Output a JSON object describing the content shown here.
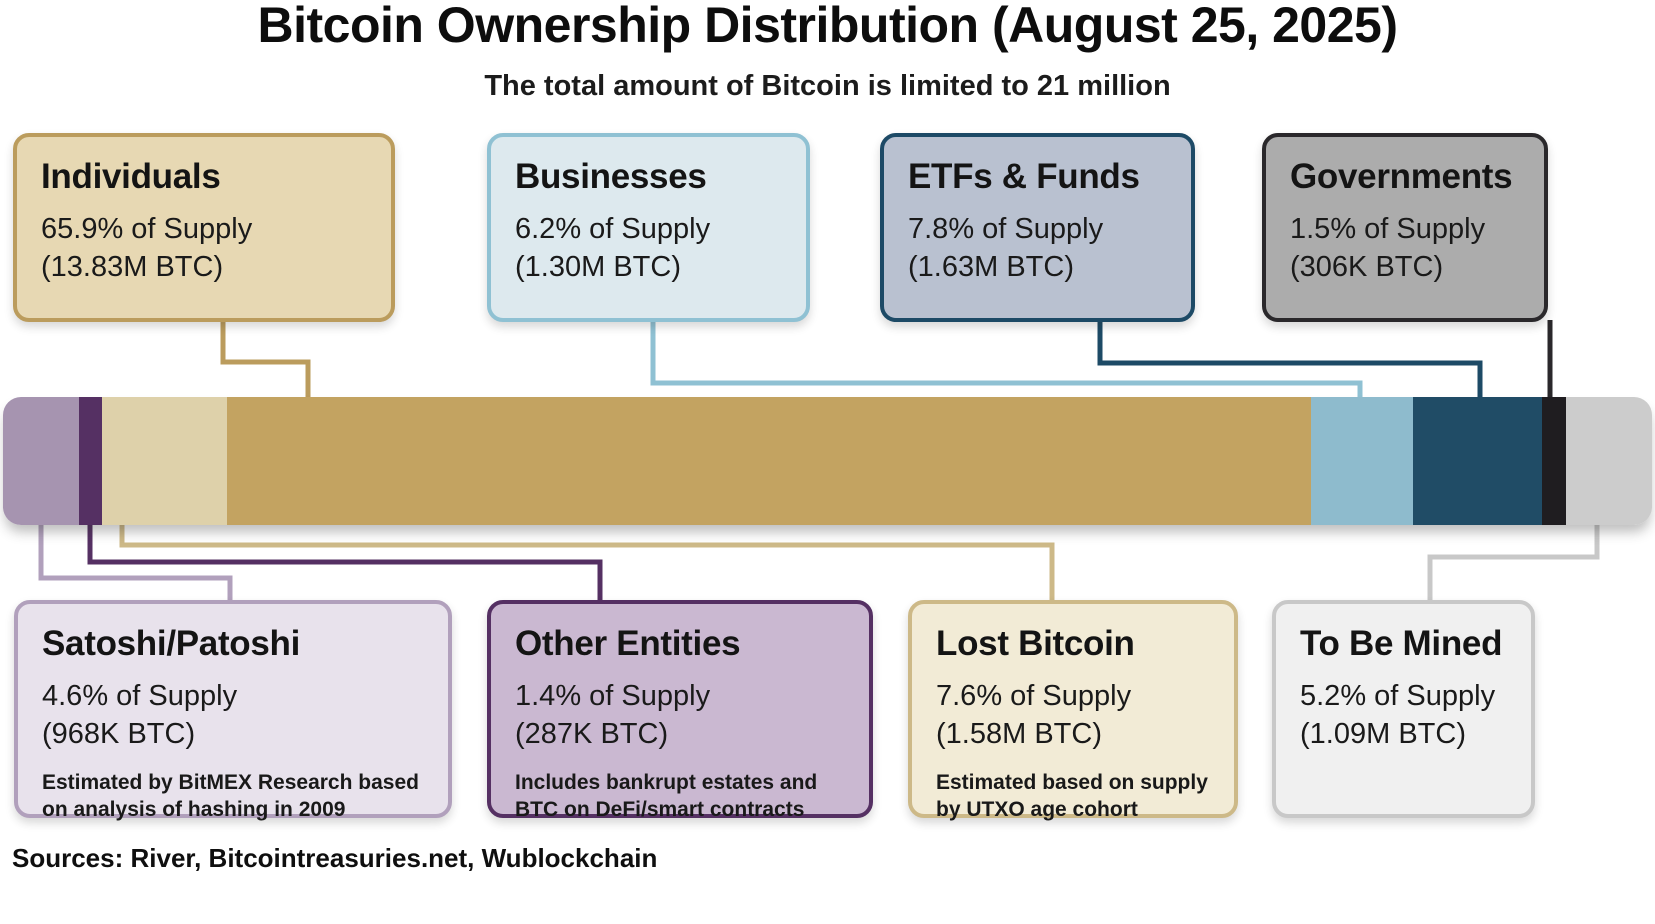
{
  "title": "Bitcoin Ownership Distribution (August 25, 2025)",
  "subtitle": "The total amount of Bitcoin is limited to 21 million",
  "sources": "Sources: River, Bitcointreasuries.net, Wublockchain",
  "cards_top": [
    {
      "title": "Individuals",
      "line1": "65.9% of Supply",
      "line2": "(13.83M BTC)",
      "bg": "#e7d8b3",
      "border": "#bb9c5d"
    },
    {
      "title": "Businesses",
      "line1": "6.2% of Supply",
      "line2": "(1.30M BTC)",
      "bg": "#dde9ee",
      "border": "#8fc1d3"
    },
    {
      "title": "ETFs & Funds",
      "line1": "7.8% of Supply",
      "line2": "(1.63M BTC)",
      "bg": "#b9c1d0",
      "border": "#1d4a66"
    },
    {
      "title": "Governments",
      "line1": "1.5% of Supply",
      "line2": "(306K BTC)",
      "bg": "#acacac",
      "border": "#2a282b"
    }
  ],
  "cards_bottom": [
    {
      "title": "Satoshi/Patoshi",
      "line1": "4.6% of Supply",
      "line2": "(968K BTC)",
      "note": "Estimated by BitMEX Research based on analysis of hashing in 2009",
      "bg": "#e8e2ec",
      "border": "#b1a0bc"
    },
    {
      "title": "Other Entities",
      "line1": "1.4% of Supply",
      "line2": "(287K BTC)",
      "note": "Includes bankrupt estates and BTC on DeFi/smart contracts",
      "bg": "#cab8d1",
      "border": "#553063"
    },
    {
      "title": "Lost Bitcoin",
      "line1": "7.6% of Supply",
      "line2": "(1.58M BTC)",
      "note": "Estimated based on supply by UTXO age cohort",
      "bg": "#f2ebd6",
      "border": "#cdb988"
    },
    {
      "title": "To Be Mined",
      "line1": "5.2% of Supply",
      "line2": "(1.09M BTC)",
      "note": "",
      "bg": "#f0f0f0",
      "border": "#c8c8c8"
    }
  ],
  "chart_data": {
    "type": "bar",
    "variant": "horizontal-stacked-100pct",
    "title": "Bitcoin Ownership Distribution (August 25, 2025)",
    "subtitle": "The total amount of Bitcoin is limited to 21 million",
    "total_supply": "21 million BTC",
    "unit": "% of Supply",
    "legend_position": "callout-boxes-above-and-below-bar",
    "grid": false,
    "segments": [
      {
        "label": "Satoshi/Patoshi",
        "percent": 4.6,
        "btc": "968K BTC",
        "color": "#a694b0"
      },
      {
        "label": "Other Entities",
        "percent": 1.4,
        "btc": "287K BTC",
        "color": "#553063"
      },
      {
        "label": "Lost Bitcoin",
        "percent": 7.6,
        "btc": "1.58M BTC",
        "color": "#ded1aa"
      },
      {
        "label": "Individuals",
        "percent": 65.9,
        "btc": "13.83M BTC",
        "color": "#c3a361"
      },
      {
        "label": "Businesses",
        "percent": 6.2,
        "btc": "1.30M BTC",
        "color": "#8ebbcd"
      },
      {
        "label": "ETFs & Funds",
        "percent": 7.8,
        "btc": "1.63M BTC",
        "color": "#204c66"
      },
      {
        "label": "Governments",
        "percent": 1.5,
        "btc": "306K BTC",
        "color": "#1f1d20"
      },
      {
        "label": "To Be Mined",
        "percent": 5.2,
        "btc": "1.09M BTC",
        "color": "#cccccc"
      }
    ],
    "annotations": [
      "Estimated by BitMEX Research based on analysis of hashing in 2009",
      "Includes bankrupt estates and BTC on DeFi/smart contracts",
      "Estimated based on supply by UTXO age cohort"
    ],
    "source_note": "Sources: River, Bitcointreasuries.net, Wublockchain"
  }
}
